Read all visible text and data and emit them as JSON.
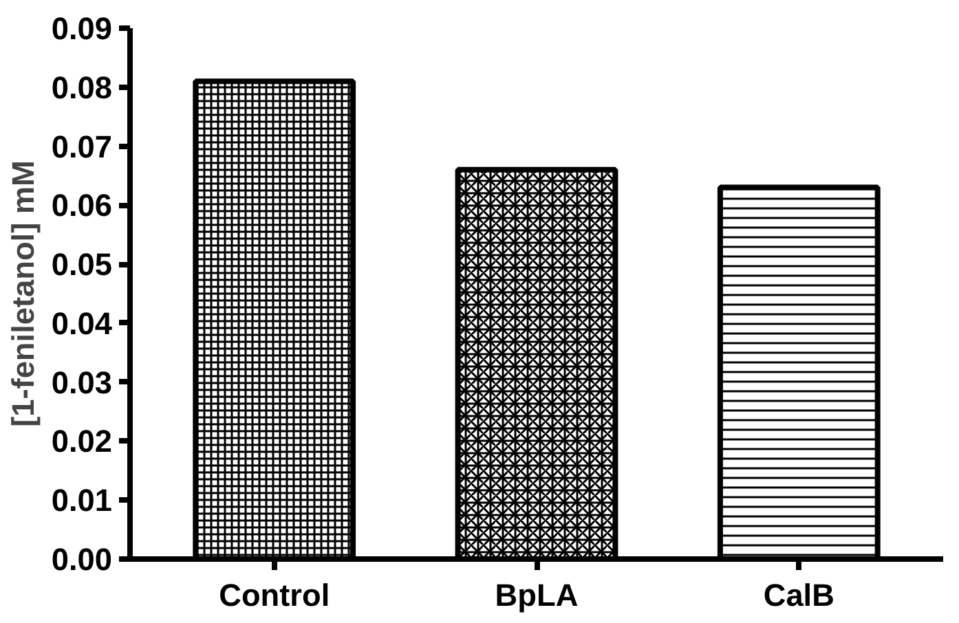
{
  "chart_data": {
    "type": "bar",
    "ylabel": "[1-feniletanol] mM",
    "categories": [
      "Control",
      "BpLA",
      "CalB"
    ],
    "values": [
      0.081,
      0.066,
      0.063
    ],
    "color": "#000000",
    "ylim": [
      0,
      0.09
    ],
    "yticks": [
      {
        "value": 0,
        "label": "0.00"
      },
      {
        "value": 0.01,
        "label": "0.01"
      },
      {
        "value": 0.02,
        "label": "0.02"
      },
      {
        "value": 0.03,
        "label": "0.03"
      },
      {
        "value": 0.04,
        "label": "0.04"
      },
      {
        "value": 0.05,
        "label": "0.05"
      },
      {
        "value": 0.06,
        "label": "0.06"
      },
      {
        "value": 0.07,
        "label": "0.07"
      },
      {
        "value": 0.08,
        "label": "0.08"
      },
      {
        "value": 0.09,
        "label": "0.09"
      }
    ],
    "grid": false
  }
}
